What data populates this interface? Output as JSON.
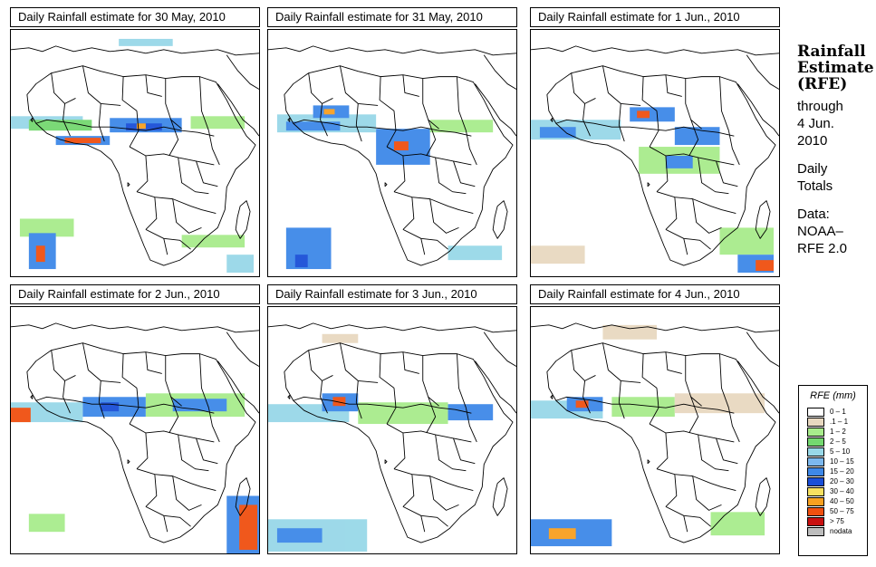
{
  "panels": [
    {
      "title": "Daily Rainfall estimate for  30 May, 2010"
    },
    {
      "title": "Daily Rainfall estimate for  31 May, 2010"
    },
    {
      "title": "Daily Rainfall estimate for  1 Jun., 2010"
    },
    {
      "title": "Daily Rainfall estimate for  2 Jun., 2010"
    },
    {
      "title": "Daily Rainfall estimate for  3 Jun., 2010"
    },
    {
      "title": "Daily Rainfall estimate for  4 Jun., 2010"
    }
  ],
  "sidebar": {
    "title_line1": "Rainfall",
    "title_line2": "Estimate",
    "title_line3": "(RFE)",
    "through": "through",
    "date_line1": "4 Jun.",
    "date_line2": "2010",
    "totals_line1": "Daily",
    "totals_line2": "Totals",
    "data_label": "Data:",
    "source_line1": "NOAA–",
    "source_line2": "RFE 2.0"
  },
  "legend": {
    "title": "RFE (mm)",
    "items": [
      {
        "label": "0 – 1",
        "color": "#ffffff"
      },
      {
        "label": ".1 – 1",
        "color": "#e8d8c0"
      },
      {
        "label": "1 – 2",
        "color": "#a8ec8c"
      },
      {
        "label": "2 – 5",
        "color": "#74d870"
      },
      {
        "label": "5 – 10",
        "color": "#98d8e8"
      },
      {
        "label": "10 – 15",
        "color": "#7cb8ee"
      },
      {
        "label": "15 – 20",
        "color": "#3e88e8"
      },
      {
        "label": "20 – 30",
        "color": "#1a4fd8"
      },
      {
        "label": "30 – 40",
        "color": "#f8e060"
      },
      {
        "label": "40 – 50",
        "color": "#f8a020"
      },
      {
        "label": "50 – 75",
        "color": "#f05010"
      },
      {
        "label": "> 75",
        "color": "#c81010"
      },
      {
        "label": "nodata",
        "color": "#bdbdbd"
      }
    ]
  }
}
